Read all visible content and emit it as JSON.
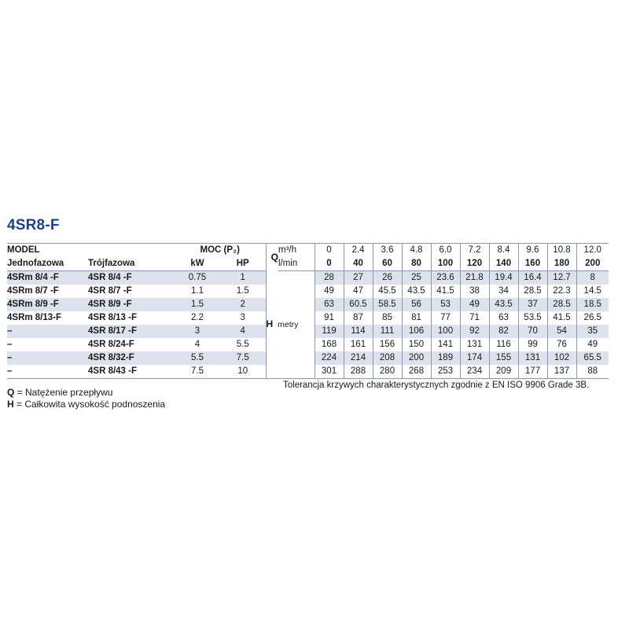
{
  "title": "4SR8-F",
  "header": {
    "model": "MODEL",
    "single_phase": "Jednofazowa",
    "three_phase": "Trójfazowa",
    "power": "MOC (P₂)",
    "kw": "kW",
    "hp": "HP",
    "q_symbol": "Q",
    "unit_m3h": "m³/h",
    "unit_lmin": "l/min",
    "h_symbol": "H",
    "h_unit": "metry"
  },
  "flow_m3h": [
    "0",
    "2.4",
    "3.6",
    "4.8",
    "6.0",
    "7.2",
    "8.4",
    "9.6",
    "10.8",
    "12.0"
  ],
  "flow_lmin": [
    "0",
    "40",
    "60",
    "80",
    "100",
    "120",
    "140",
    "160",
    "180",
    "200"
  ],
  "rows": [
    {
      "single": "4SRm 8/4  -F",
      "three": "4SR 8/4  -F",
      "kw": "0.75",
      "hp": "1",
      "h": [
        "28",
        "27",
        "26",
        "25",
        "23.6",
        "21.8",
        "19.4",
        "16.4",
        "12.7",
        "8"
      ]
    },
    {
      "single": "4SRm 8/7  -F",
      "three": "4SR 8/7  -F",
      "kw": "1.1",
      "hp": "1.5",
      "h": [
        "49",
        "47",
        "45.5",
        "43.5",
        "41.5",
        "38",
        "34",
        "28.5",
        "22.3",
        "14.5"
      ]
    },
    {
      "single": "4SRm 8/9  -F",
      "three": "4SR 8/9  -F",
      "kw": "1.5",
      "hp": "2",
      "h": [
        "63",
        "60.5",
        "58.5",
        "56",
        "53",
        "49",
        "43.5",
        "37",
        "28.5",
        "18.5"
      ]
    },
    {
      "single": "4SRm 8/13-F",
      "three": "4SR 8/13 -F",
      "kw": "2.2",
      "hp": "3",
      "h": [
        "91",
        "87",
        "85",
        "81",
        "77",
        "71",
        "63",
        "53.5",
        "41.5",
        "26.5"
      ]
    },
    {
      "single": "–",
      "three": "4SR 8/17 -F",
      "kw": "3",
      "hp": "4",
      "h": [
        "119",
        "114",
        "111",
        "106",
        "100",
        "92",
        "82",
        "70",
        "54",
        "35"
      ]
    },
    {
      "single": "–",
      "three": "4SR 8/24-F",
      "kw": "4",
      "hp": "5.5",
      "h": [
        "168",
        "161",
        "156",
        "150",
        "141",
        "131",
        "116",
        "99",
        "76",
        "49"
      ]
    },
    {
      "single": "–",
      "three": "4SR 8/32-F",
      "kw": "5.5",
      "hp": "7.5",
      "h": [
        "224",
        "214",
        "208",
        "200",
        "189",
        "174",
        "155",
        "131",
        "102",
        "65.5"
      ]
    },
    {
      "single": "–",
      "three": "4SR 8/43 -F",
      "kw": "7.5",
      "hp": "10",
      "h": [
        "301",
        "288",
        "280",
        "268",
        "253",
        "234",
        "209",
        "177",
        "137",
        "88"
      ]
    }
  ],
  "legend": {
    "q_symbol": "Q",
    "q_text": " = Natężenie przepływu",
    "h_symbol": "H",
    "h_text": " = Całkowita wysokość podnoszenia"
  },
  "note": "Tolerancja krzywych charakterystycznych zgodnie z EN ISO 9906 Grade 3B.",
  "colors": {
    "title": "#1e3f8a",
    "row_shade": "#dde3ec",
    "rule": "#8a97b0"
  }
}
